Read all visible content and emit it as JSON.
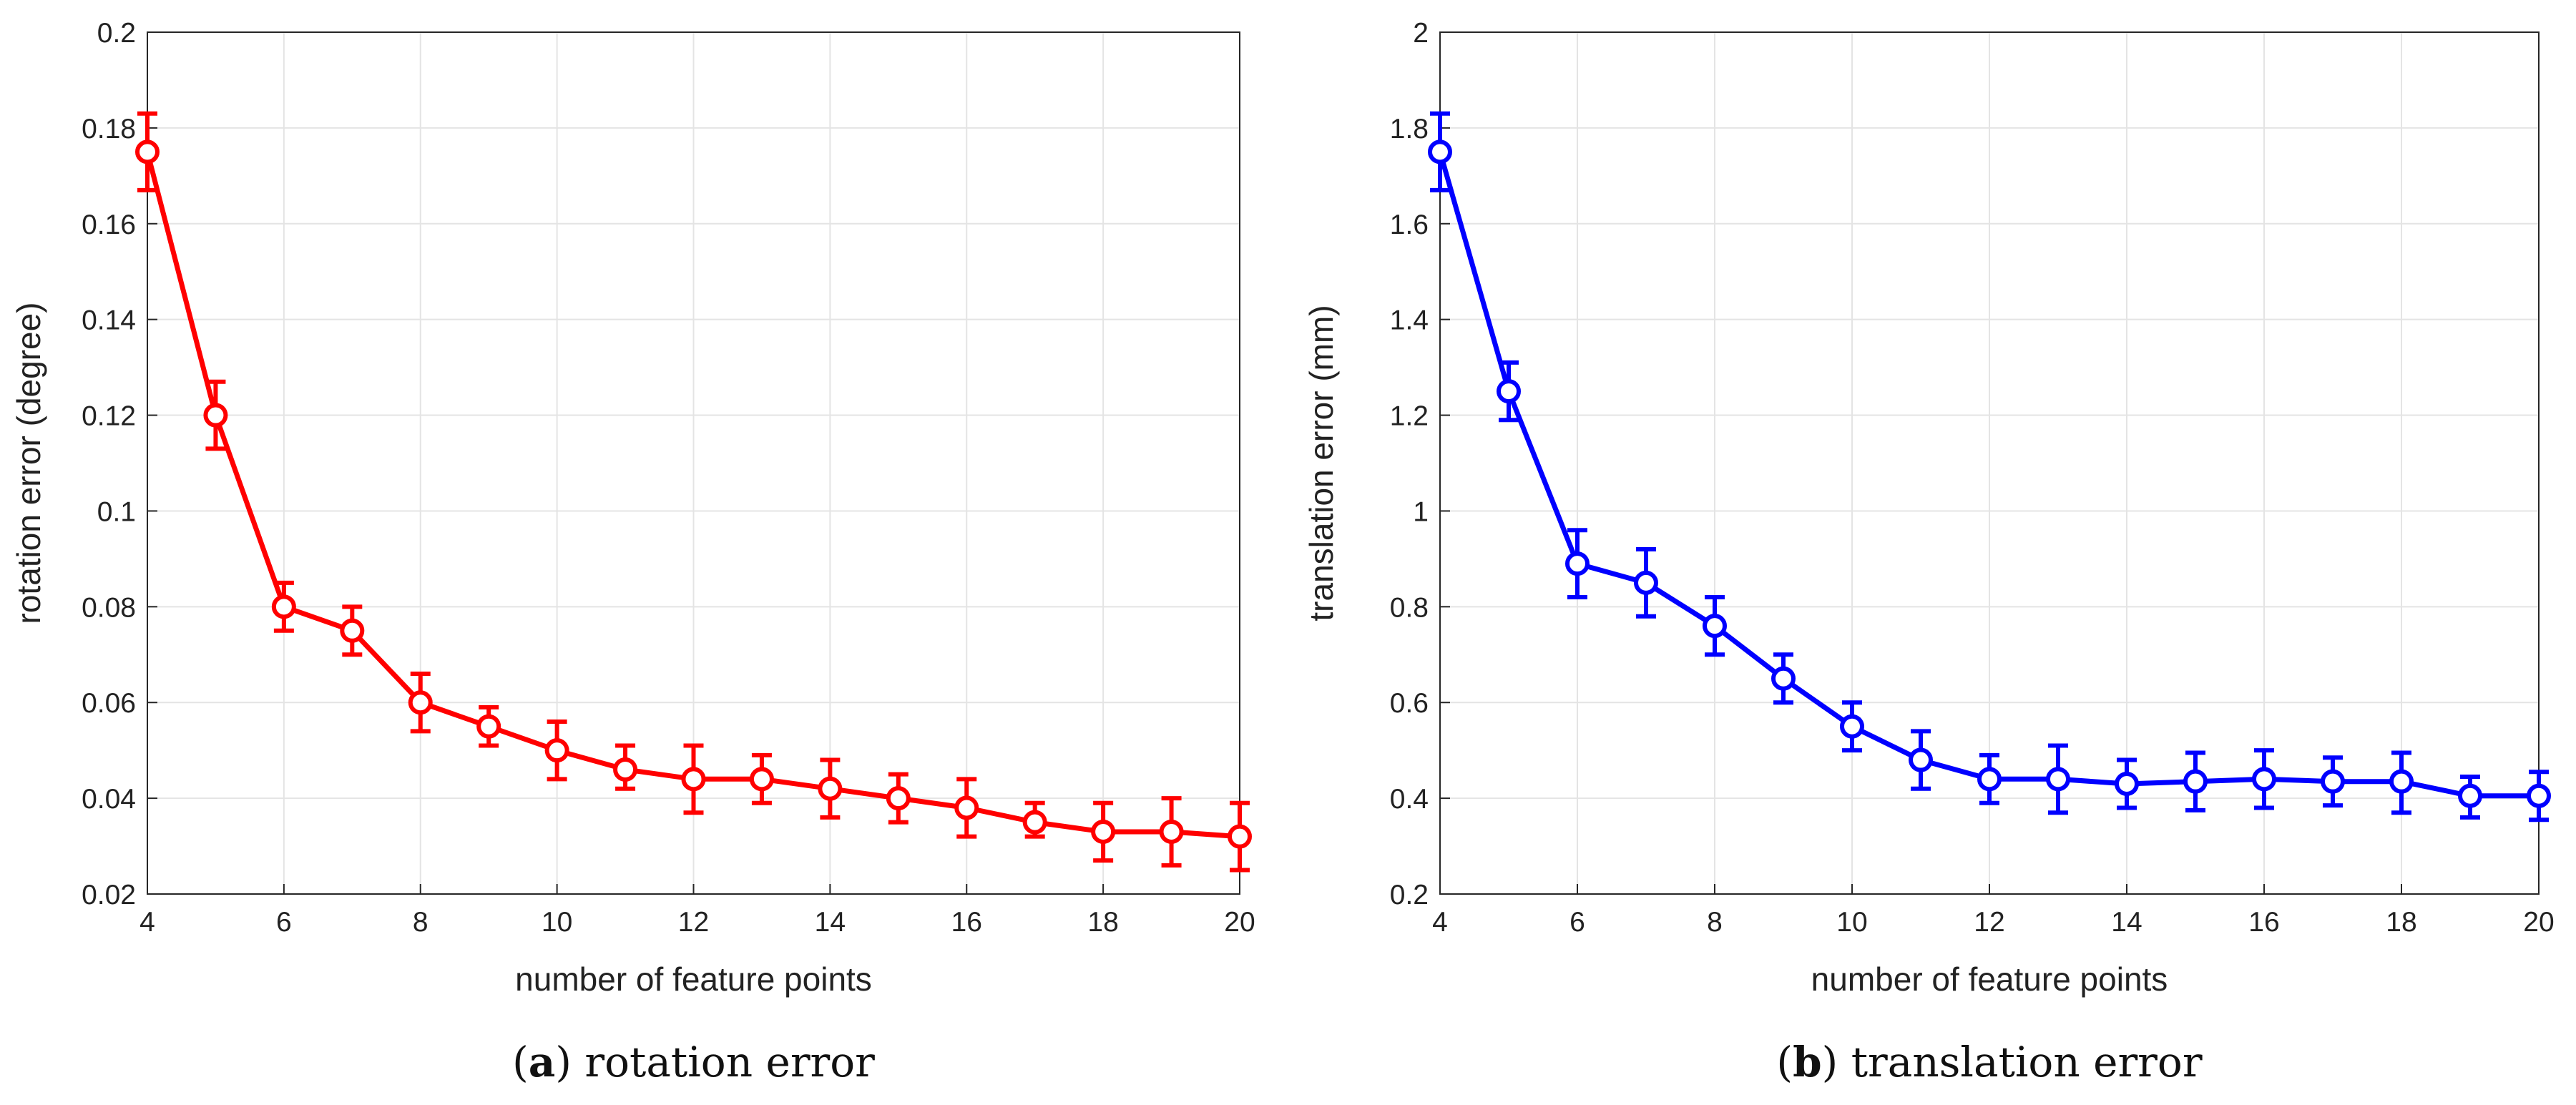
{
  "chart_data": [
    {
      "id": "a",
      "type": "line",
      "xlabel": "number of feature points",
      "ylabel": "rotation error (degree)",
      "caption_letter": "a",
      "caption_text": "rotation error",
      "color": "#ff0000",
      "xlim": [
        4,
        20
      ],
      "ylim": [
        0.02,
        0.2
      ],
      "grid": true,
      "x_ticks": [
        "4",
        "6",
        "8",
        "10",
        "12",
        "14",
        "16",
        "18",
        "20"
      ],
      "y_ticks": [
        "0.02",
        "0.04",
        "0.06",
        "0.08",
        "0.1",
        "0.12",
        "0.14",
        "0.16",
        "0.18",
        "0.2"
      ],
      "x": [
        4,
        5,
        6,
        7,
        8,
        9,
        10,
        11,
        12,
        13,
        14,
        15,
        16,
        17,
        18,
        19,
        20
      ],
      "y": [
        0.175,
        0.12,
        0.08,
        0.075,
        0.06,
        0.055,
        0.05,
        0.046,
        0.044,
        0.044,
        0.042,
        0.04,
        0.038,
        0.035,
        0.033,
        0.033,
        0.032
      ],
      "err_low": [
        0.167,
        0.113,
        0.075,
        0.07,
        0.054,
        0.051,
        0.044,
        0.042,
        0.037,
        0.039,
        0.036,
        0.035,
        0.032,
        0.032,
        0.027,
        0.026,
        0.025
      ],
      "err_high": [
        0.183,
        0.127,
        0.085,
        0.08,
        0.066,
        0.059,
        0.056,
        0.051,
        0.051,
        0.049,
        0.048,
        0.045,
        0.044,
        0.039,
        0.039,
        0.04,
        0.039
      ]
    },
    {
      "id": "b",
      "type": "line",
      "xlabel": "number of feature points",
      "ylabel": "translation error (mm)",
      "caption_letter": "b",
      "caption_text": "translation error",
      "color": "#0000ff",
      "xlim": [
        4,
        20
      ],
      "ylim": [
        0.2,
        2
      ],
      "grid": true,
      "x_ticks": [
        "4",
        "6",
        "8",
        "10",
        "12",
        "14",
        "16",
        "18",
        "20"
      ],
      "y_ticks": [
        "0.2",
        "0.4",
        "0.6",
        "0.8",
        "1",
        "1.2",
        "1.4",
        "1.6",
        "1.8",
        "2"
      ],
      "x": [
        4,
        5,
        6,
        7,
        8,
        9,
        10,
        11,
        12,
        13,
        14,
        15,
        16,
        17,
        18,
        19,
        20
      ],
      "y": [
        1.75,
        1.25,
        0.89,
        0.85,
        0.76,
        0.65,
        0.55,
        0.48,
        0.44,
        0.44,
        0.43,
        0.435,
        0.44,
        0.435,
        0.435,
        0.405,
        0.405
      ],
      "err_low": [
        1.67,
        1.19,
        0.82,
        0.78,
        0.7,
        0.6,
        0.5,
        0.42,
        0.39,
        0.37,
        0.38,
        0.375,
        0.38,
        0.385,
        0.37,
        0.36,
        0.355
      ],
      "err_high": [
        1.83,
        1.31,
        0.96,
        0.92,
        0.82,
        0.7,
        0.6,
        0.54,
        0.49,
        0.51,
        0.48,
        0.495,
        0.5,
        0.485,
        0.495,
        0.445,
        0.455
      ]
    }
  ]
}
